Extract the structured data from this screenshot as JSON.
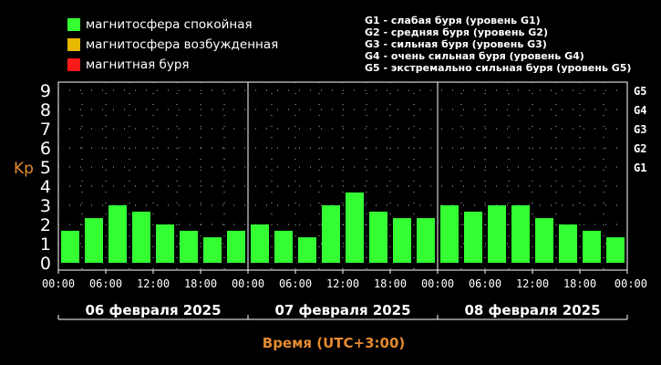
{
  "legend": [
    {
      "label": "магнитосфера спокойная",
      "color": "#33ff33"
    },
    {
      "label": "магнитосфера возбужденная",
      "color": "#e6b800"
    },
    {
      "label": "магнитная буря",
      "color": "#ff1a1a"
    }
  ],
  "storm_levels": [
    "G1 - слабая буря (уровень G1)",
    "G2 - средняя буря (уровень G2)",
    "G3 - сильная буря (уровень G3)",
    "G4 - очень сильная буря (уровень G4)",
    "G5 - экстремально сильная буря (уровень G5)"
  ],
  "chart_data": {
    "type": "bar",
    "ylabel": "Kp",
    "xlabel": "Время (UTC+3:00)",
    "ylim": [
      0,
      9
    ],
    "yticks": [
      "0",
      "1",
      "2",
      "3",
      "4",
      "5",
      "6",
      "7",
      "8",
      "9"
    ],
    "right_ticks": [
      {
        "label": "G1",
        "value": 5
      },
      {
        "label": "G2",
        "value": 6
      },
      {
        "label": "G3",
        "value": 7
      },
      {
        "label": "G4",
        "value": 8
      },
      {
        "label": "G5",
        "value": 9
      }
    ],
    "time_ticks": [
      "00:00",
      "06:00",
      "12:00",
      "18:00",
      "00:00",
      "06:00",
      "12:00",
      "18:00",
      "00:00",
      "06:00",
      "12:00",
      "18:00",
      "00:00"
    ],
    "days": [
      "06 февраля 2025",
      "07 февраля 2025",
      "08 февраля 2025"
    ],
    "bar_color": "#33ff33",
    "values": [
      1.67,
      2.33,
      3.0,
      2.67,
      2.0,
      1.67,
      1.33,
      1.67,
      2.0,
      1.67,
      1.33,
      3.0,
      3.67,
      2.67,
      2.33,
      2.33,
      3.0,
      2.67,
      3.0,
      3.0,
      2.33,
      2.0,
      1.67,
      1.33
    ]
  }
}
